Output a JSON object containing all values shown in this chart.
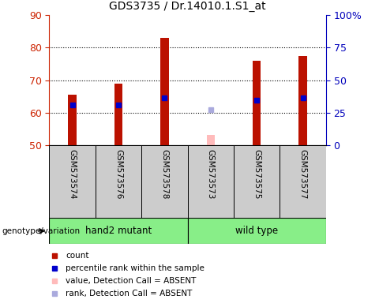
{
  "title": "GDS3735 / Dr.14010.1.S1_at",
  "samples": [
    "GSM573574",
    "GSM573576",
    "GSM573578",
    "GSM573573",
    "GSM573575",
    "GSM573577"
  ],
  "groups": [
    "hand2 mutant",
    "hand2 mutant",
    "hand2 mutant",
    "wild type",
    "wild type",
    "wild type"
  ],
  "count_values": [
    65.5,
    69.0,
    83.0,
    53.2,
    76.0,
    77.5
  ],
  "rank_values": [
    62.5,
    62.5,
    64.5,
    61.0,
    64.0,
    64.5
  ],
  "absent_flags": [
    false,
    false,
    false,
    true,
    false,
    false
  ],
  "ylim_left": [
    50,
    90
  ],
  "ylim_right": [
    0,
    100
  ],
  "yticks_left": [
    50,
    60,
    70,
    80,
    90
  ],
  "yticks_right": [
    0,
    25,
    50,
    75,
    100
  ],
  "left_axis_color": "#cc2200",
  "right_axis_color": "#0000bb",
  "bar_color_present": "#bb1100",
  "bar_color_absent": "#ffbbbb",
  "rank_color_present": "#0000cc",
  "rank_color_absent": "#aaaadd",
  "bar_width": 0.18,
  "bar_bottom": 50,
  "grid_ticks": [
    60,
    70,
    80
  ],
  "group_info": [
    {
      "name": "hand2 mutant",
      "start": 0,
      "end": 2,
      "color": "#88ee88"
    },
    {
      "name": "wild type",
      "start": 3,
      "end": 5,
      "color": "#88ee88"
    }
  ],
  "legend_items": [
    {
      "label": "count",
      "color": "#bb1100"
    },
    {
      "label": "percentile rank within the sample",
      "color": "#0000cc"
    },
    {
      "label": "value, Detection Call = ABSENT",
      "color": "#ffbbbb"
    },
    {
      "label": "rank, Detection Call = ABSENT",
      "color": "#aaaadd"
    }
  ],
  "genotype_label": "genotype/variation"
}
